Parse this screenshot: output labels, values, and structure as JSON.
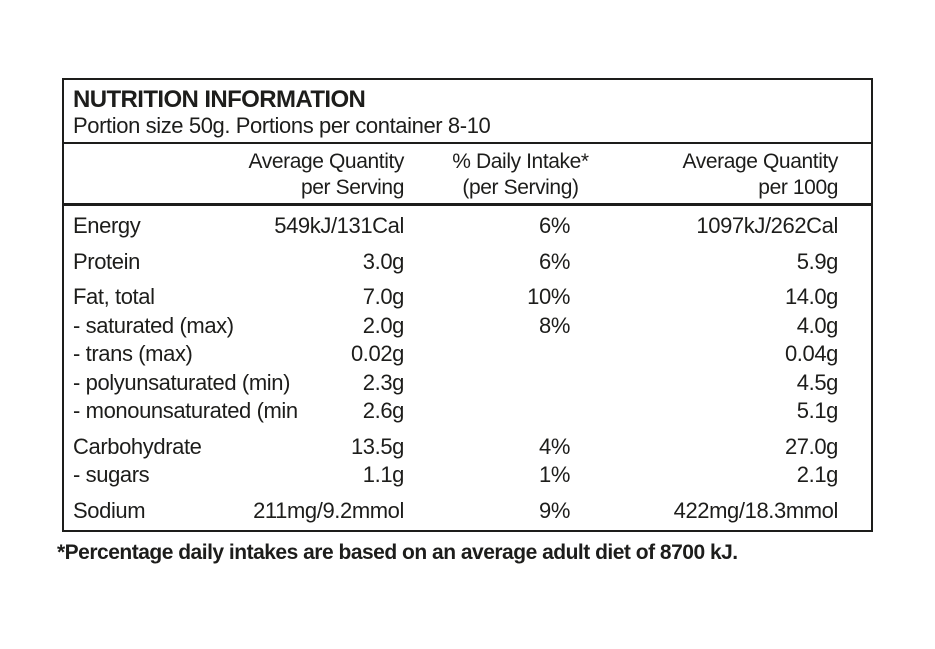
{
  "label": {
    "title": "NUTRITION INFORMATION",
    "subtitle": "Portion size 50g. Portions per container 8-10",
    "columns": [
      {
        "line1": "Average Quantity",
        "line2": "per Serving"
      },
      {
        "line1": "% Daily Intake*",
        "line2": "(per Serving)"
      },
      {
        "line1": "Average Quantity",
        "line2": "per 100g"
      }
    ],
    "groups": [
      {
        "rows": [
          {
            "name": "Energy",
            "per_serving": "549kJ/131Cal",
            "daily_intake": "6%",
            "per_100g": "1097kJ/262Cal"
          }
        ]
      },
      {
        "rows": [
          {
            "name": "Protein",
            "per_serving": "3.0g",
            "daily_intake": "6%",
            "per_100g": "5.9g"
          }
        ]
      },
      {
        "rows": [
          {
            "name": "Fat, total",
            "per_serving": "7.0g",
            "daily_intake": "10%",
            "per_100g": "14.0g"
          },
          {
            "name": "- saturated (max)",
            "per_serving": "2.0g",
            "daily_intake": "8%",
            "per_100g": "4.0g"
          },
          {
            "name": "- trans (max)",
            "per_serving": "0.02g",
            "daily_intake": "",
            "per_100g": "0.04g"
          },
          {
            "name": "- polyunsaturated (min)",
            "per_serving": "2.3g",
            "daily_intake": "",
            "per_100g": "4.5g"
          },
          {
            "name": "- monounsaturated (min",
            "per_serving": "2.6g",
            "daily_intake": "",
            "per_100g": "5.1g"
          }
        ]
      },
      {
        "rows": [
          {
            "name": "Carbohydrate",
            "per_serving": "13.5g",
            "daily_intake": "4%",
            "per_100g": "27.0g"
          },
          {
            "name": "- sugars",
            "per_serving": "1.1g",
            "daily_intake": "1%",
            "per_100g": "2.1g"
          }
        ]
      },
      {
        "rows": [
          {
            "name": "Sodium",
            "per_serving": "211mg/9.2mmol",
            "daily_intake": "9%",
            "per_100g": "422mg/18.3mmol"
          }
        ]
      }
    ],
    "footnote": "*Percentage daily intakes are based on an average adult diet of 8700 kJ.",
    "colors": {
      "text": "#1d1d1b",
      "border": "#1d1d1b",
      "background": "#ffffff"
    }
  }
}
